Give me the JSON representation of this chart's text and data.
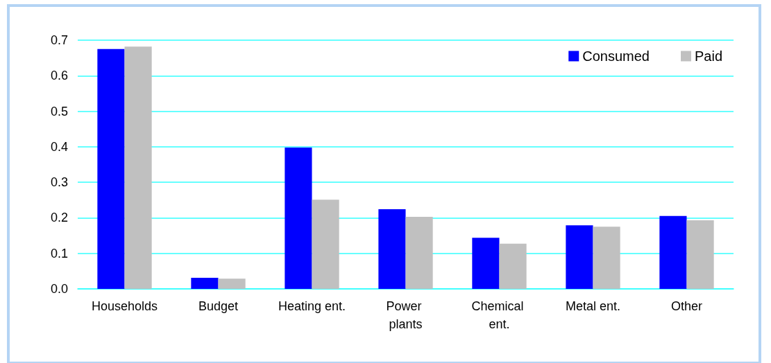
{
  "chart_data": {
    "type": "bar",
    "categories": [
      "Households",
      "Budget",
      "Heating ent.",
      "Power plants",
      "Chemical ent.",
      "Metal ent.",
      "Other"
    ],
    "series": [
      {
        "name": "Consumed",
        "color": "#0000ff",
        "values": [
          0.675,
          0.031,
          0.398,
          0.224,
          0.144,
          0.179,
          0.205
        ]
      },
      {
        "name": "Paid",
        "color": "#c0c0c0",
        "values": [
          0.682,
          0.029,
          0.251,
          0.203,
          0.127,
          0.175,
          0.193
        ]
      }
    ],
    "ylim": [
      0,
      0.7
    ],
    "yticks": [
      {
        "value": 0,
        "label": "0.0"
      },
      0.1,
      0.2,
      0.3,
      0.4,
      0.5,
      0.6,
      0.7
    ],
    "grid": "y",
    "legend": "top right"
  }
}
